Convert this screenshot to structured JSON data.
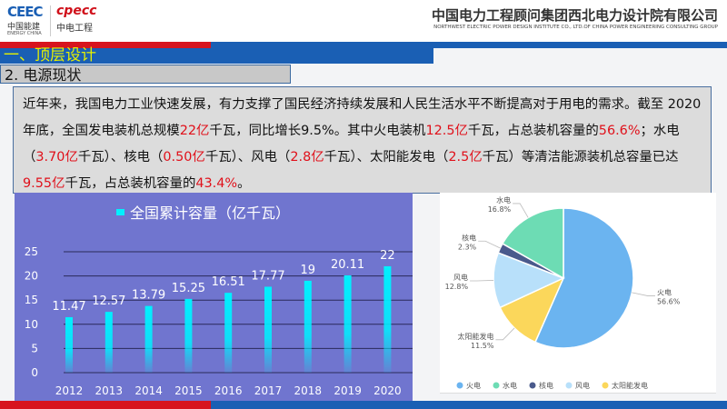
{
  "header": {
    "logo1": "CEEC",
    "logo1_cn": "中国能建",
    "logo1_en": "ENERGY CHINA",
    "logo2": "cpecc",
    "logo2_cn": "中电工程",
    "company": "中国电力工程顾问集团西北电力设计院有限公司",
    "company_en": "NORTHWEST ELECTRIC POWER DESIGN INSTITUTE CO., LTD.OF CHINA POWER ENGINEERING CONSULTING GROUP"
  },
  "section_title": "一、顶层设计",
  "subsection_title": "2. 电源现状",
  "paragraph": [
    {
      "t": "近年来，我国电力工业快速发展，有力支撑了国民经济持续发展和人民生活水平不断提高对于用电的需求。截至 2020年底，全国发电装机总规模"
    },
    {
      "t": "22亿",
      "r": true
    },
    {
      "t": "千瓦，同比增长9.5%。其中火电装机"
    },
    {
      "t": "12.5亿",
      "r": true
    },
    {
      "t": "千瓦，占总装机容量的"
    },
    {
      "t": "56.6%",
      "r": true
    },
    {
      "t": "；水电（"
    },
    {
      "t": "3.70亿",
      "r": true
    },
    {
      "t": "千瓦）、核电（"
    },
    {
      "t": "0.50亿",
      "r": true
    },
    {
      "t": "千瓦）、风电（"
    },
    {
      "t": "2.8亿",
      "r": true
    },
    {
      "t": "千瓦）、太阳能发电（"
    },
    {
      "t": "2.5亿",
      "r": true
    },
    {
      "t": "千瓦）等清洁能源装机总容量已达"
    },
    {
      "t": "9.55亿",
      "r": true
    },
    {
      "t": "千瓦，占总装机容量的"
    },
    {
      "t": "43.4%",
      "r": true
    },
    {
      "t": "。"
    }
  ],
  "colors": {
    "highlight": "#e0101a",
    "brand_blue": "#1a5fb4",
    "brand_red": "#d7141e",
    "title_yellow": "#e6f000"
  },
  "chart_data": [
    {
      "type": "bar",
      "title": "",
      "legend": [
        "全国累计容量（亿千瓦）"
      ],
      "legend_placement": "top",
      "categories": [
        "2012",
        "2013",
        "2014",
        "2015",
        "2016",
        "2017",
        "2018",
        "2019",
        "2020"
      ],
      "series": [
        {
          "name": "全国累计容量（亿千瓦）",
          "values": [
            11.47,
            12.57,
            13.79,
            15.25,
            16.51,
            17.77,
            19,
            20.11,
            22
          ]
        }
      ],
      "ylim": [
        0,
        25
      ],
      "yticks": [
        0,
        5,
        10,
        15,
        20,
        25
      ],
      "grid": true,
      "bar_color": "#00f0ff",
      "background": "#7075cf"
    },
    {
      "type": "pie",
      "legend_placement": "bottom",
      "labels": [
        "火电",
        "太阳能发电",
        "风电",
        "核电",
        "水电"
      ],
      "values": [
        56.6,
        11.5,
        12.8,
        2.3,
        16.8
      ],
      "colors": [
        "#6bb4f0",
        "#fbd75b",
        "#b8e0fa",
        "#4a5a8c",
        "#6ddcb4"
      ],
      "legend": [
        "火电",
        "水电",
        "核电",
        "风电",
        "太阳能发电"
      ],
      "legend_colors": [
        "#6bb4f0",
        "#6ddcb4",
        "#4a5a8c",
        "#b8e0fa",
        "#fbd75b"
      ]
    }
  ]
}
